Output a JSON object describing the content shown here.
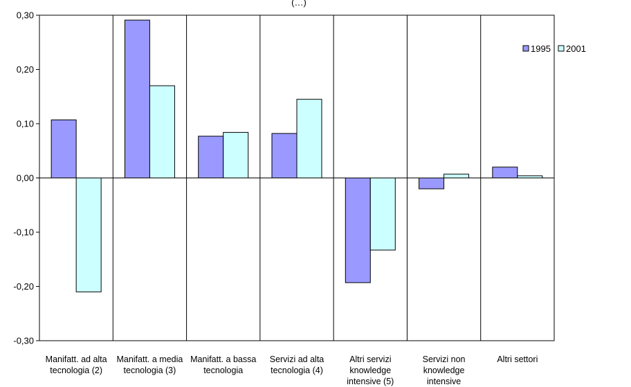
{
  "chart_data": {
    "type": "bar",
    "title_fragment": "(…)",
    "categories": [
      [
        "Manifatt. ad alta",
        "tecnologia (2)"
      ],
      [
        "Manifatt. a media",
        "tecnologia (3)"
      ],
      [
        "Manifatt. a bassa",
        "tecnologia"
      ],
      [
        "Servizi ad alta",
        "tecnologia (4)"
      ],
      [
        "Altri servizi",
        "knowledge",
        "intensive (5)"
      ],
      [
        "Servizi non",
        "knowledge",
        "intensive"
      ],
      [
        "Altri settori"
      ]
    ],
    "series": [
      {
        "name": "1995",
        "color": "#9999ff",
        "values": [
          0.107,
          0.291,
          0.077,
          0.082,
          -0.193,
          -0.02,
          0.02
        ]
      },
      {
        "name": "2001",
        "color": "#ccffff",
        "values": [
          -0.21,
          0.17,
          0.084,
          0.145,
          -0.133,
          0.007,
          0.004
        ]
      }
    ],
    "yticks": [
      "0,30",
      "0,20",
      "0,10",
      "0,00",
      "-0,10",
      "-0,20",
      "-0,30"
    ],
    "ylim": [
      -0.3,
      0.3
    ],
    "grid": {
      "vertical": true,
      "horizontal": false
    },
    "legend_position": "top-right",
    "xlabel": "",
    "ylabel": ""
  }
}
